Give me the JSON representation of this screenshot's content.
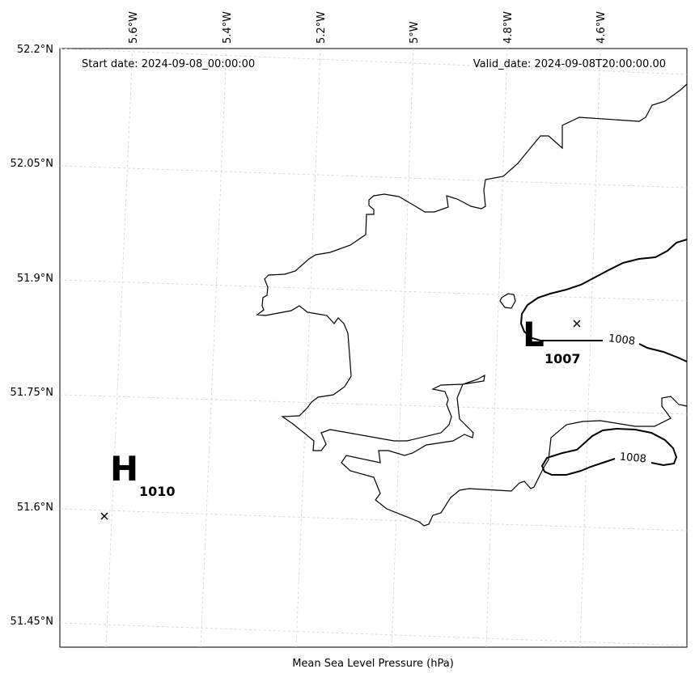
{
  "map": {
    "start_date": "Start date: 2024-09-08_00:00:00",
    "valid_date": "Valid_date: 2024-09-08T20:00:00.00",
    "xlabel": "Mean Sea Level Pressure (hPa)",
    "lat_labels": [
      "52.2°N",
      "52.05°N",
      "51.9°N",
      "51.75°N",
      "51.6°N",
      "51.45°N"
    ],
    "lon_labels": [
      "5.6°W",
      "5.4°W",
      "5.2°W",
      "5°W",
      "4.8°W",
      "4.6°W"
    ],
    "isobar_labels": [
      "1008",
      "1008"
    ],
    "high_center": {
      "letter": "H",
      "value": "1010"
    },
    "low_center": {
      "letter": "L",
      "value": "1007"
    }
  }
}
